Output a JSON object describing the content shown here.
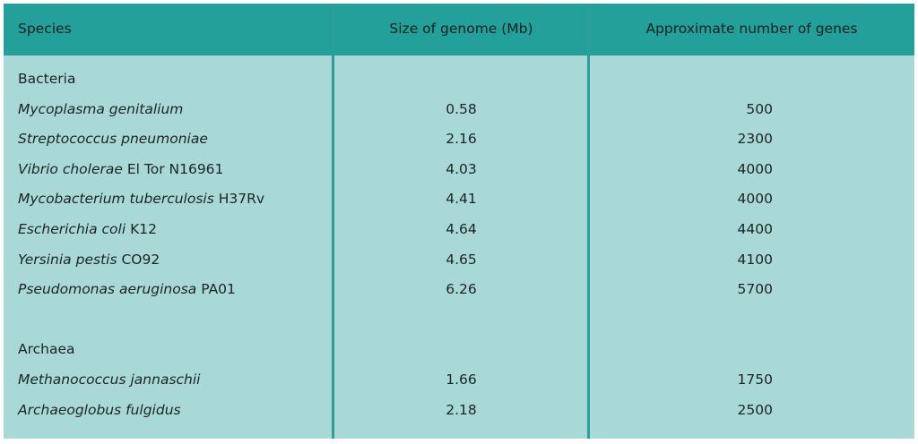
{
  "header": [
    "Species",
    "Size of genome (Mb)",
    "Approximate number of genes"
  ],
  "groups": [
    {
      "name": "Bacteria",
      "rows": [
        {
          "species": "Mycoplasma genitalium",
          "size": 0.58,
          "genes": 500
        },
        {
          "species": "Streptococcus pneumoniae",
          "size": 2.16,
          "genes": 2300
        },
        {
          "species": "Vibrio cholerae",
          "strain": "El Tor N16961",
          "size": 4.03,
          "genes": 4000
        },
        {
          "species": "Mycobacterium tuberculosis",
          "strain": "H37Rv",
          "size": 4.41,
          "genes": 4000
        },
        {
          "species": "Escherichia coli",
          "strain": "K12",
          "size": 4.64,
          "genes": 4400
        },
        {
          "species": "Yersinia pestis",
          "strain": "CO92",
          "size": 4.65,
          "genes": 4100
        },
        {
          "species": "Pseudomonas aeruginosa",
          "strain": "PA01",
          "size": 6.26,
          "genes": 5700
        }
      ]
    },
    {
      "name": "Archaea",
      "rows": [
        {
          "species": "Methanococcus jannaschii",
          "size": 1.66,
          "genes": 1750
        },
        {
          "species": "Archaeoglobus fulgidus",
          "size": 2.18,
          "genes": 2500
        }
      ]
    }
  ]
}
